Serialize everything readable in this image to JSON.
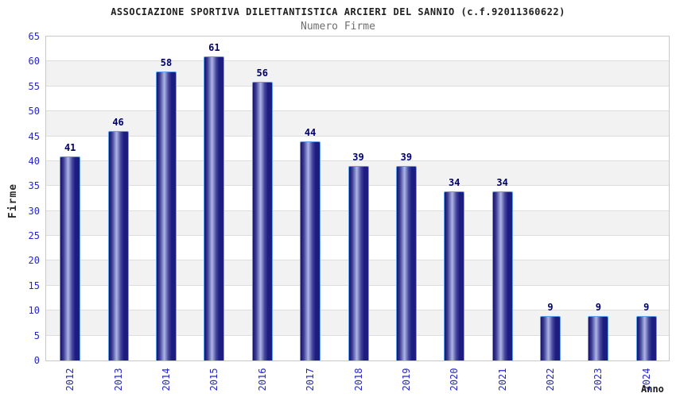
{
  "header": {
    "title": "ASSOCIAZIONE SPORTIVA DILETTANTISTICA ARCIERI DEL SANNIO (c.f.92011360622)",
    "subtitle": "Numero Firme"
  },
  "chart_data": {
    "type": "bar",
    "title": "ASSOCIAZIONE SPORTIVA DILETTANTISTICA ARCIERI DEL SANNIO (c.f.92011360622)",
    "subtitle": "Numero Firme",
    "categories": [
      "2012",
      "2013",
      "2014",
      "2015",
      "2016",
      "2017",
      "2018",
      "2019",
      "2020",
      "2021",
      "2022",
      "2023",
      "2024"
    ],
    "values": [
      41,
      46,
      58,
      61,
      56,
      44,
      39,
      39,
      34,
      34,
      9,
      9,
      9
    ],
    "xlabel": "Anno",
    "ylabel": "Firme",
    "ylim": [
      0,
      65
    ],
    "ytick_step": 5,
    "grid": true,
    "legend": false,
    "banded_background": true
  },
  "colors": {
    "tick_label": "#2626cc",
    "bar_value_label": "#00006b",
    "bar_border": "#64a0f0",
    "bar_gradient": [
      "#141462",
      "#3c3c96",
      "#aeb6e4",
      "#44449e",
      "#1d1d80",
      "#1d1d80"
    ],
    "band_alt": "#f2f2f2",
    "band_main": "#ffffff",
    "gridline": "#dddddd",
    "plot_border": "#c9c9c9",
    "title": "#1f1f1f",
    "subtitle": "#6f6f6f",
    "axis_title": "#2b2b2b"
  }
}
